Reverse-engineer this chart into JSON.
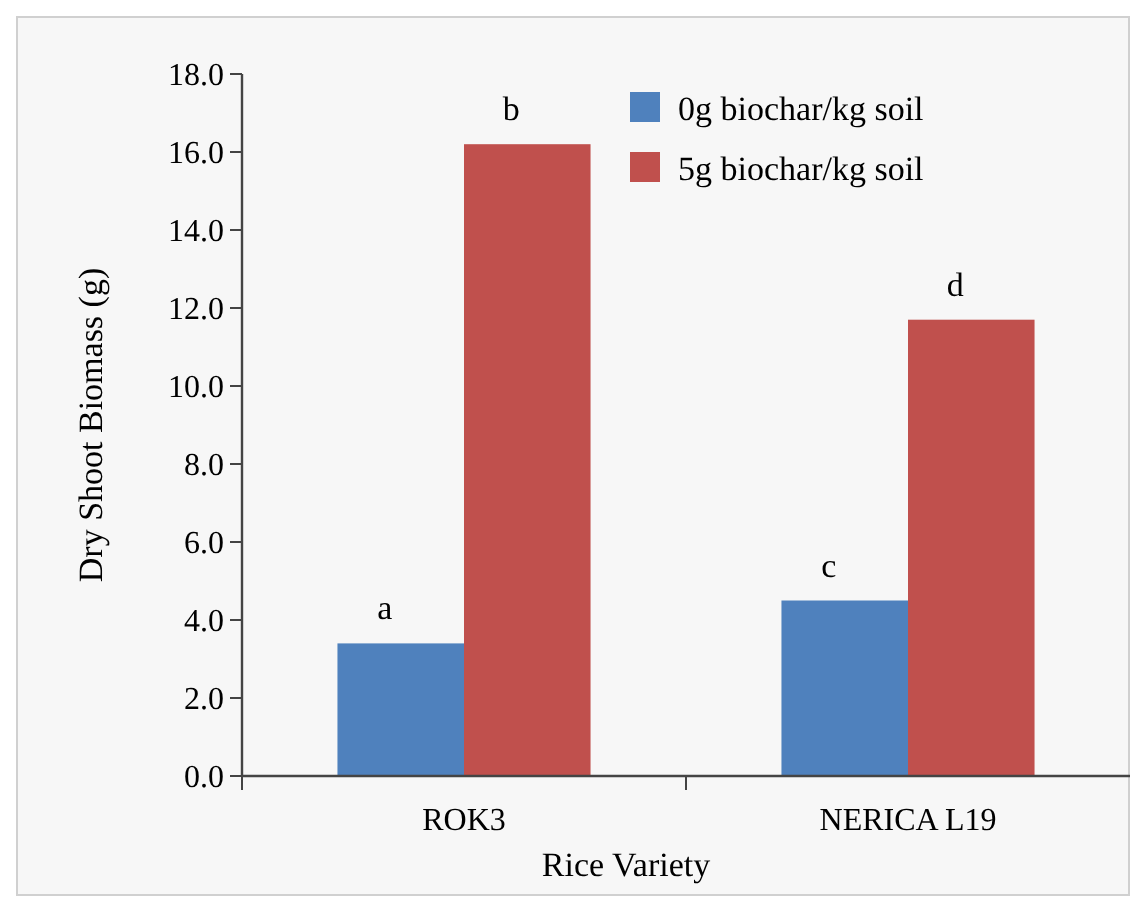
{
  "chart_data": {
    "type": "bar",
    "xlabel": "Rice Variety",
    "ylabel": "Dry Shoot Biomass (g)",
    "categories": [
      "ROK3",
      "NERICA L19"
    ],
    "series": [
      {
        "name": "0g biochar/kg soil",
        "color": "#4f81bd",
        "values": [
          3.4,
          4.5
        ]
      },
      {
        "name": "5g biochar/kg soil",
        "color": "#c0504d",
        "values": [
          16.2,
          11.7
        ]
      }
    ],
    "ylim": [
      0,
      18
    ],
    "yticks": [
      {
        "value": 0,
        "label": "0.0"
      },
      {
        "value": 2,
        "label": "2.0"
      },
      {
        "value": 4,
        "label": "4.0"
      },
      {
        "value": 6,
        "label": "6.0"
      },
      {
        "value": 8,
        "label": "8.0"
      },
      {
        "value": 10,
        "label": "10.0"
      },
      {
        "value": 12,
        "label": "12.0"
      },
      {
        "value": 14,
        "label": "14.0"
      },
      {
        "value": 16,
        "label": "16.0"
      },
      {
        "value": 18,
        "label": "18.0"
      }
    ],
    "annotations": [
      {
        "text": "a",
        "x": "ROK3",
        "y": 3.4
      },
      {
        "text": "b",
        "x": "ROK3",
        "y": 16.2
      },
      {
        "text": "c",
        "x": "NERICA L19",
        "y": 4.5
      },
      {
        "text": "d",
        "x": "NERICA L19",
        "y": 11.7
      }
    ],
    "grid": false,
    "legend": "top right"
  }
}
